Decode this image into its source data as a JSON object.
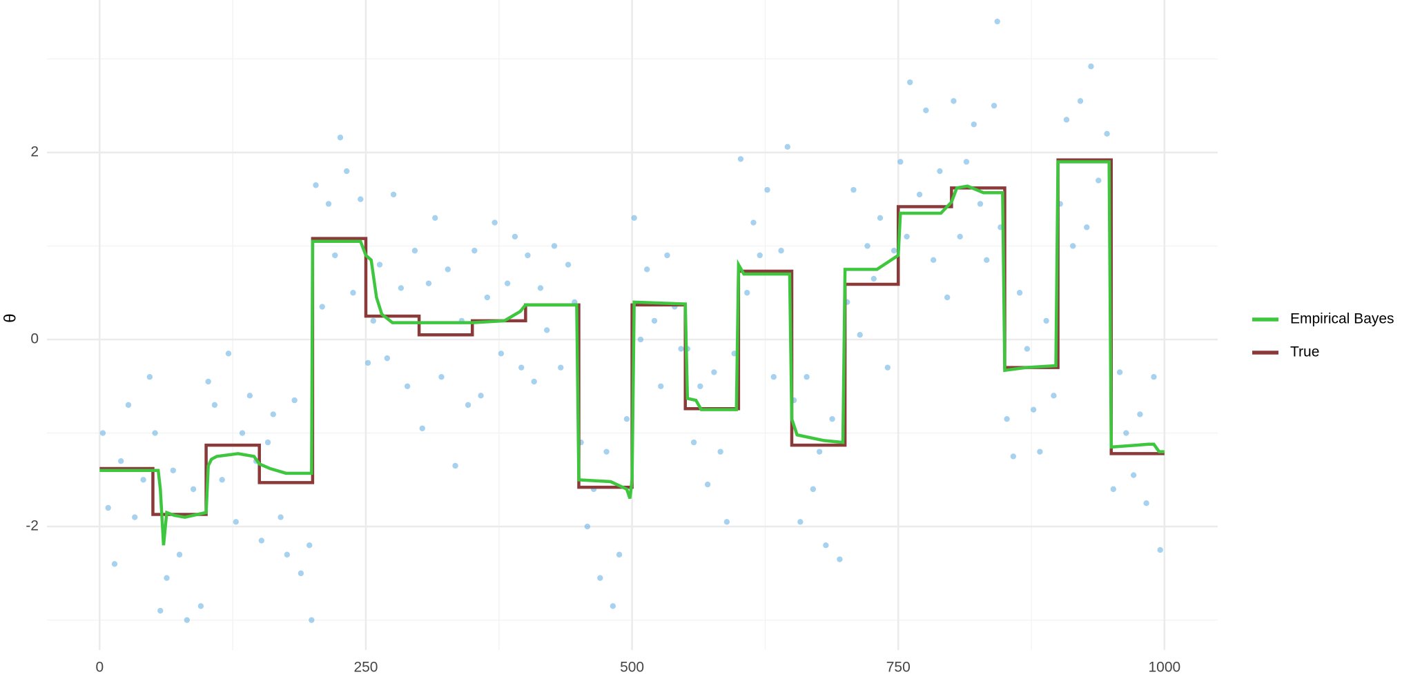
{
  "chart_data": {
    "type": "scatter",
    "y_label": "θ",
    "xlim": [
      -49.5,
      1050
    ],
    "ylim": [
      -3.32,
      3.63
    ],
    "xticks": [
      0,
      250,
      500,
      750,
      1000
    ],
    "yticks": [
      -2,
      0,
      2
    ],
    "x_minor_grid": [
      125,
      375,
      625,
      875
    ],
    "y_minor_grid": [
      -3,
      -1,
      1,
      3
    ],
    "grid": true,
    "legend": "right",
    "series": [
      {
        "type": "scatter",
        "color": "#5dade2",
        "x": [
          3,
          8,
          14,
          20,
          27,
          33,
          41,
          47,
          52,
          57,
          63,
          69,
          75,
          82,
          88,
          95,
          102,
          108,
          115,
          121,
          128,
          134,
          141,
          147,
          152,
          158,
          163,
          170,
          176,
          183,
          189,
          197,
          199,
          203,
          209,
          215,
          221,
          226,
          232,
          238,
          245,
          252,
          257,
          263,
          270,
          276,
          283,
          289,
          296,
          303,
          309,
          315,
          321,
          327,
          334,
          340,
          346,
          352,
          358,
          364,
          371,
          377,
          383,
          390,
          396,
          402,
          408,
          414,
          420,
          427,
          433,
          440,
          446,
          452,
          458,
          464,
          470,
          476,
          482,
          488,
          495,
          502,
          508,
          514,
          521,
          527,
          533,
          540,
          546,
          552,
          558,
          564,
          571,
          577,
          583,
          589,
          596,
          602,
          608,
          614,
          620,
          627,
          633,
          640,
          646,
          652,
          658,
          664,
          670,
          676,
          682,
          688,
          695,
          702,
          708,
          714,
          721,
          727,
          733,
          740,
          746,
          752,
          758,
          761,
          770,
          776,
          783,
          789,
          796,
          802,
          808,
          814,
          821,
          827,
          833,
          840,
          843,
          846,
          852,
          858,
          864,
          871,
          877,
          883,
          889,
          896,
          902,
          908,
          914,
          921,
          927,
          931,
          938,
          946,
          952,
          958,
          964,
          971,
          977,
          983,
          990,
          996
        ],
        "values": [
          -1.0,
          -1.8,
          -2.4,
          -1.3,
          -0.7,
          -1.9,
          -1.5,
          -0.4,
          -1.0,
          -2.9,
          -2.55,
          -1.4,
          -2.3,
          -3.0,
          -1.6,
          -2.85,
          -0.45,
          -0.7,
          -1.5,
          -0.15,
          -1.95,
          -1.0,
          -0.6,
          -1.3,
          -2.15,
          -1.1,
          -0.8,
          -1.9,
          -2.3,
          -0.65,
          -2.5,
          -2.2,
          -3.0,
          1.65,
          0.35,
          1.45,
          0.9,
          2.16,
          1.8,
          0.5,
          1.5,
          -0.25,
          0.2,
          0.8,
          -0.2,
          1.55,
          0.55,
          -0.5,
          0.95,
          -0.95,
          0.6,
          1.3,
          -0.4,
          0.75,
          -1.35,
          0.2,
          -0.7,
          0.95,
          -0.6,
          0.45,
          1.25,
          -0.15,
          0.6,
          1.1,
          -0.3,
          0.9,
          -0.45,
          0.55,
          0.1,
          1.0,
          -0.3,
          0.8,
          0.4,
          -1.1,
          -2.0,
          -1.6,
          -2.55,
          -1.2,
          -2.85,
          -2.3,
          -0.85,
          1.3,
          0.0,
          0.75,
          0.2,
          -0.5,
          0.9,
          0.35,
          -0.1,
          -0.1,
          -1.1,
          -0.5,
          -1.55,
          -0.35,
          -1.2,
          -1.95,
          -0.15,
          1.93,
          0.5,
          1.25,
          0.9,
          1.6,
          -0.4,
          0.95,
          2.06,
          -0.65,
          -1.95,
          -0.4,
          -1.6,
          -1.2,
          -2.2,
          -0.85,
          -2.35,
          0.4,
          1.6,
          0.05,
          1.0,
          0.65,
          1.3,
          -0.3,
          0.95,
          1.9,
          1.1,
          2.75,
          1.55,
          2.45,
          0.85,
          1.8,
          0.45,
          2.55,
          1.1,
          1.9,
          2.3,
          1.45,
          0.85,
          2.5,
          3.4,
          1.2,
          -0.85,
          -1.25,
          0.5,
          -0.1,
          -0.75,
          -1.2,
          0.2,
          -0.6,
          1.45,
          2.35,
          1.0,
          2.55,
          1.2,
          2.92,
          1.7,
          2.2,
          -1.6,
          -0.35,
          -1.0,
          -1.45,
          -0.8,
          -1.75,
          -0.4,
          -2.25
        ]
      },
      {
        "type": "line",
        "name": "Empirical Bayes",
        "color": "#3ec63e",
        "x": [
          0,
          55,
          57,
          60,
          63,
          70,
          80,
          100,
          102,
          105,
          110,
          130,
          145,
          150,
          160,
          175,
          199,
          200,
          245,
          250,
          255,
          260,
          265,
          275,
          350,
          380,
          395,
          400,
          448,
          450,
          480,
          495,
          498,
          500,
          502,
          550,
          552,
          560,
          565,
          598,
          600,
          605,
          648,
          650,
          655,
          680,
          698,
          700,
          730,
          750,
          752,
          790,
          800,
          805,
          815,
          830,
          848,
          850,
          870,
          898,
          900,
          948,
          950,
          985,
          990,
          995,
          1000
        ],
        "values": [
          -1.4,
          -1.4,
          -1.6,
          -2.2,
          -1.85,
          -1.88,
          -1.9,
          -1.85,
          -1.35,
          -1.28,
          -1.25,
          -1.22,
          -1.25,
          -1.33,
          -1.38,
          -1.43,
          -1.43,
          1.05,
          1.05,
          0.9,
          0.85,
          0.45,
          0.27,
          0.18,
          0.18,
          0.2,
          0.3,
          0.37,
          0.37,
          -1.5,
          -1.52,
          -1.6,
          -1.7,
          -1.5,
          0.4,
          0.38,
          -0.63,
          -0.65,
          -0.75,
          -0.75,
          0.8,
          0.7,
          0.7,
          -0.85,
          -1.02,
          -1.08,
          -1.1,
          0.75,
          0.75,
          0.9,
          1.35,
          1.35,
          1.47,
          1.62,
          1.64,
          1.57,
          1.57,
          -0.33,
          -0.3,
          -0.28,
          1.9,
          1.9,
          -1.15,
          -1.12,
          -1.12,
          -1.2,
          -1.2
        ]
      },
      {
        "type": "line",
        "name": "True",
        "color": "#8b3a3a",
        "x": [
          0,
          50,
          50,
          100,
          100,
          150,
          150,
          200,
          200,
          250,
          250,
          300,
          300,
          350,
          350,
          400,
          400,
          450,
          450,
          500,
          500,
          550,
          550,
          600,
          600,
          650,
          650,
          700,
          700,
          750,
          750,
          800,
          800,
          850,
          850,
          900,
          900,
          950,
          950,
          1000
        ],
        "values": [
          -1.38,
          -1.38,
          -1.87,
          -1.87,
          -1.13,
          -1.13,
          -1.53,
          -1.53,
          1.08,
          1.08,
          0.25,
          0.25,
          0.05,
          0.05,
          0.2,
          0.2,
          0.37,
          0.37,
          -1.58,
          -1.58,
          0.37,
          0.37,
          -0.74,
          -0.74,
          0.73,
          0.73,
          -1.13,
          -1.13,
          0.59,
          0.59,
          1.42,
          1.42,
          1.62,
          1.62,
          -0.3,
          -0.3,
          1.92,
          1.92,
          -1.22,
          -1.22
        ]
      }
    ]
  }
}
